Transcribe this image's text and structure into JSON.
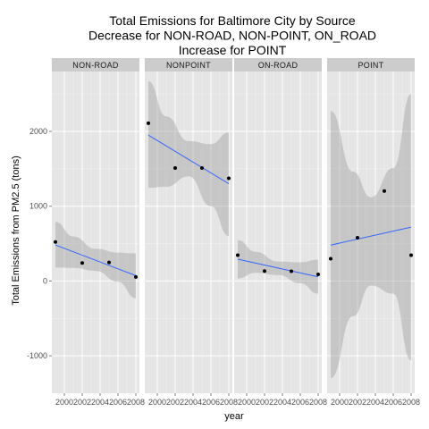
{
  "chart_data": {
    "type": "scatter",
    "title_lines": [
      "Total Emissions for Baltimore City by Source",
      "Decrease for NON-ROAD, NON-POINT, ON_ROAD",
      "Increase for POINT"
    ],
    "xlabel": "year",
    "ylabel": "Total Emissions from PM2.5 (tons)",
    "xlim": [
      1998.6,
      2008.4
    ],
    "ylim": [
      -1500,
      2800
    ],
    "x_ticks": [
      2000,
      2002,
      2004,
      2006,
      2008
    ],
    "x_tick_labels": [
      "2000",
      "2002",
      "2004",
      "2006",
      "2008"
    ],
    "y_ticks": [
      -1000,
      0,
      1000,
      2000
    ],
    "y_tick_labels": [
      "-1000",
      "0",
      "1000",
      "2000"
    ],
    "grid": true,
    "fit": "linear regression line with confidence band",
    "colors": {
      "panel_bg": "#e5e5e5",
      "strip_bg": "#cccccc",
      "grid_major": "#ffffff",
      "grid_minor": "#f2f2f2",
      "fit_line": "#3366ff",
      "ribbon": "#999999",
      "point": "#000000"
    },
    "panels": [
      {
        "label": "NON-ROAD",
        "points": [
          {
            "x": 1999,
            "y": 522
          },
          {
            "x": 2002,
            "y": 241
          },
          {
            "x": 2005,
            "y": 248
          },
          {
            "x": 2008,
            "y": 55
          }
        ],
        "fit": {
          "x0": 1999,
          "y0": 482,
          "x1": 2008,
          "y1": 72
        },
        "ribbon_upper": [
          {
            "x": 1999,
            "y": 790
          },
          {
            "x": 2001,
            "y": 595
          },
          {
            "x": 2003.5,
            "y": 430
          },
          {
            "x": 2006,
            "y": 380
          },
          {
            "x": 2008,
            "y": 370
          }
        ],
        "ribbon_lower": [
          {
            "x": 1999,
            "y": 180
          },
          {
            "x": 2001,
            "y": 175
          },
          {
            "x": 2003.5,
            "y": 135
          },
          {
            "x": 2006,
            "y": -10
          },
          {
            "x": 2008,
            "y": -230
          }
        ]
      },
      {
        "label": "NONPOINT",
        "points": [
          {
            "x": 1999,
            "y": 2108
          },
          {
            "x": 2002,
            "y": 1510
          },
          {
            "x": 2005,
            "y": 1510
          },
          {
            "x": 2008,
            "y": 1373
          }
        ],
        "fit": {
          "x0": 1999,
          "y0": 1950,
          "x1": 2008,
          "y1": 1300
        },
        "ribbon_upper": [
          {
            "x": 1999,
            "y": 2670
          },
          {
            "x": 2001,
            "y": 2200
          },
          {
            "x": 2003.5,
            "y": 1870
          },
          {
            "x": 2006,
            "y": 1830
          },
          {
            "x": 2008,
            "y": 1985
          }
        ],
        "ribbon_lower": [
          {
            "x": 1999,
            "y": 1245
          },
          {
            "x": 2001,
            "y": 1260
          },
          {
            "x": 2003.5,
            "y": 1400
          },
          {
            "x": 2006,
            "y": 1000
          },
          {
            "x": 2008,
            "y": 600
          }
        ]
      },
      {
        "label": "ON-ROAD",
        "points": [
          {
            "x": 1999,
            "y": 346
          },
          {
            "x": 2002,
            "y": 134
          },
          {
            "x": 2005,
            "y": 130
          },
          {
            "x": 2008,
            "y": 88
          }
        ],
        "fit": {
          "x0": 1999,
          "y0": 292,
          "x1": 2008,
          "y1": 56
        },
        "ribbon_upper": [
          {
            "x": 1999,
            "y": 545
          },
          {
            "x": 2001,
            "y": 390
          },
          {
            "x": 2003.5,
            "y": 260
          },
          {
            "x": 2006,
            "y": 250
          },
          {
            "x": 2008,
            "y": 285
          }
        ],
        "ribbon_lower": [
          {
            "x": 1999,
            "y": 35
          },
          {
            "x": 2001,
            "y": 110
          },
          {
            "x": 2003.5,
            "y": 80
          },
          {
            "x": 2006,
            "y": -30
          },
          {
            "x": 2008,
            "y": -170
          }
        ]
      },
      {
        "label": "POINT",
        "points": [
          {
            "x": 1999,
            "y": 297
          },
          {
            "x": 2002,
            "y": 579
          },
          {
            "x": 2005,
            "y": 1203
          },
          {
            "x": 2008,
            "y": 345
          }
        ],
        "fit": {
          "x0": 1999,
          "y0": 480,
          "x1": 2008,
          "y1": 720
        },
        "ribbon_upper": [
          {
            "x": 1999,
            "y": 2270
          },
          {
            "x": 2001.5,
            "y": 1460
          },
          {
            "x": 2003.5,
            "y": 1120
          },
          {
            "x": 2006,
            "y": 1510
          },
          {
            "x": 2008,
            "y": 2500
          }
        ],
        "ribbon_lower": [
          {
            "x": 1999,
            "y": -1300
          },
          {
            "x": 2001.5,
            "y": -470
          },
          {
            "x": 2003.5,
            "y": -60
          },
          {
            "x": 2006,
            "y": -170
          },
          {
            "x": 2008,
            "y": -1060
          }
        ]
      }
    ]
  }
}
